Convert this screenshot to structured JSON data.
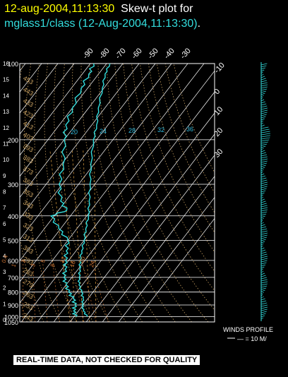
{
  "header": {
    "datetime": "12-aug-2004,11:13:30",
    "title_part": "Skew-t plot for",
    "station_line": "mglass1/class (12-Aug-2004,11:13:30)",
    "period": "."
  },
  "footer": {
    "quality_note": "REAL-TIME DATA, NOT CHECKED FOR QUALITY",
    "winds_title": "WINDS PROFILE",
    "winds_scale": "— = 10 M/"
  },
  "colors": {
    "background": "#000000",
    "grid": "#ffffff",
    "theta_dry": "#c8a060",
    "moist": "#e0a040",
    "mixing": "#c87030",
    "temperature": "#33dddd",
    "dewpoint": "#33dddd",
    "title_yellow": "#ffff00",
    "title_cyan": "#33dddd"
  },
  "chart_data": {
    "type": "skew-t",
    "y_axis": "pressure (mb)",
    "pressure_labels": [
      100,
      200,
      300,
      400,
      500,
      600,
      700,
      800,
      900,
      1000,
      1050
    ],
    "height_labels_km": [
      16,
      15,
      14,
      13,
      12,
      11,
      10,
      9,
      8,
      7,
      6,
      5,
      4,
      3,
      2,
      1,
      0
    ],
    "top_temperature_labels": [
      -90,
      -80,
      -70,
      -60,
      -50,
      -40,
      -30
    ],
    "right_temperature_labels": [
      -20,
      -10,
      0,
      10,
      20,
      30
    ],
    "theta_labels": [
      243,
      253,
      263,
      273,
      283,
      293,
      303,
      313,
      323,
      333,
      343,
      353,
      363,
      373,
      383,
      393,
      403,
      413,
      423,
      433,
      443,
      453
    ],
    "mixing_ratio_labels": [
      0.4,
      1,
      2,
      3,
      5,
      8,
      12,
      16,
      20,
      24
    ],
    "moist_labels": [
      20,
      24,
      28,
      32,
      36
    ],
    "temperature_profile": [
      {
        "p": 1000,
        "t": 28
      },
      {
        "p": 950,
        "t": 23
      },
      {
        "p": 900,
        "t": 19.5
      },
      {
        "p": 850,
        "t": 17
      },
      {
        "p": 800,
        "t": 13
      },
      {
        "p": 750,
        "t": 8
      },
      {
        "p": 700,
        "t": 4.5
      },
      {
        "p": 650,
        "t": 1
      },
      {
        "p": 600,
        "t": -3
      },
      {
        "p": 550,
        "t": -6.5
      },
      {
        "p": 500,
        "t": -10
      },
      {
        "p": 450,
        "t": -14.5
      },
      {
        "p": 400,
        "t": -19
      },
      {
        "p": 350,
        "t": -25.5
      },
      {
        "p": 300,
        "t": -33
      },
      {
        "p": 250,
        "t": -42
      },
      {
        "p": 200,
        "t": -52
      },
      {
        "p": 175,
        "t": -57
      },
      {
        "p": 150,
        "t": -64
      },
      {
        "p": 125,
        "t": -71
      },
      {
        "p": 110,
        "t": -76
      },
      {
        "p": 100,
        "t": -78
      }
    ],
    "dewpoint_profile": [
      {
        "p": 1000,
        "t": 21
      },
      {
        "p": 950,
        "t": 17
      },
      {
        "p": 900,
        "t": 15
      },
      {
        "p": 850,
        "t": 11
      },
      {
        "p": 800,
        "t": 5
      },
      {
        "p": 750,
        "t": 0
      },
      {
        "p": 700,
        "t": -5
      },
      {
        "p": 650,
        "t": -8
      },
      {
        "p": 600,
        "t": -12
      },
      {
        "p": 550,
        "t": -16
      },
      {
        "p": 500,
        "t": -20
      },
      {
        "p": 450,
        "t": -31
      },
      {
        "p": 400,
        "t": -42
      },
      {
        "p": 380,
        "t": -35
      },
      {
        "p": 350,
        "t": -43
      },
      {
        "p": 300,
        "t": -52
      },
      {
        "p": 250,
        "t": -59
      },
      {
        "p": 200,
        "t": -70
      },
      {
        "p": 175,
        "t": -76
      },
      {
        "p": 150,
        "t": -80
      },
      {
        "p": 125,
        "t": -84
      },
      {
        "p": 110,
        "t": -86
      },
      {
        "p": 100,
        "t": -88
      }
    ],
    "grid": true
  }
}
